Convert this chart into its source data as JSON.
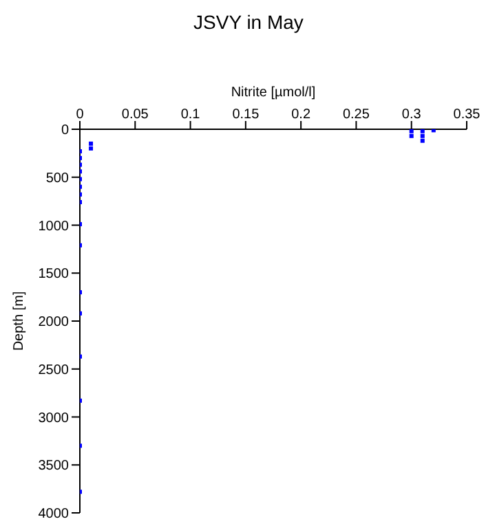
{
  "chart_data": {
    "type": "scatter",
    "title": "JSVY in May",
    "xlabel": "Nitrite [µmol/l]",
    "ylabel": "Depth [m]",
    "x": [
      0.32,
      0.3,
      0.3,
      0.31,
      0.31,
      0.31,
      0.01,
      0.01,
      0,
      0,
      0,
      0,
      0,
      0,
      0,
      0,
      0,
      0,
      0,
      0,
      0,
      0,
      0,
      0
    ],
    "values": [
      10,
      20,
      70,
      20,
      70,
      120,
      150,
      200,
      230,
      300,
      370,
      440,
      520,
      600,
      680,
      760,
      990,
      1210,
      1700,
      1920,
      2370,
      2830,
      3300,
      3780
    ],
    "color": "#0000ff",
    "marker": "square",
    "xlim": [
      0,
      0.35
    ],
    "xticks": [
      0,
      0.05,
      0.1,
      0.15,
      0.2,
      0.25,
      0.3,
      0.35
    ],
    "ylim": [
      4000,
      0
    ],
    "yticks": [
      0,
      500,
      1000,
      1500,
      2000,
      2500,
      3000,
      3500,
      4000
    ],
    "grid": false
  }
}
